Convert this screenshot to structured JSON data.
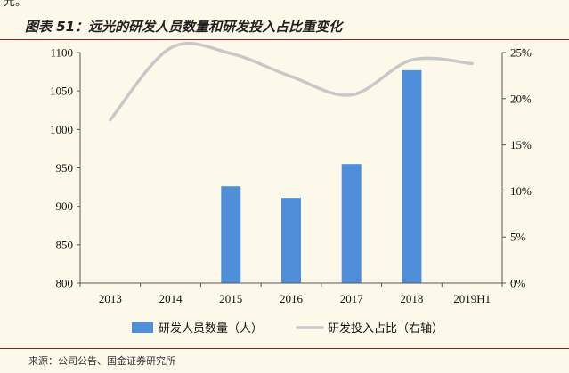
{
  "header": {
    "top_fragment": "元。",
    "title": "图表 51：远光的研发人员数量和研发投入占比重变化"
  },
  "footer": {
    "source": "来源：公司公告、国金证券研究所"
  },
  "colors": {
    "bar": "#4f8fd9",
    "line": "#c8c8c8",
    "rule": "#8a1f24",
    "background": "#fdf9ea"
  },
  "chart_data": {
    "type": "bar",
    "categories": [
      "2013",
      "2014",
      "2015",
      "2016",
      "2017",
      "2018",
      "2019H1"
    ],
    "series": [
      {
        "name": "研发人员数量（人）",
        "type": "bar",
        "axis": "left",
        "values": [
          null,
          null,
          926,
          911,
          955,
          1077,
          null
        ]
      },
      {
        "name": "研发投入占比（右轴）",
        "type": "line",
        "axis": "right",
        "values": [
          17.7,
          25.5,
          24.9,
          22.4,
          20.4,
          24.2,
          23.8
        ]
      }
    ],
    "y_left": {
      "lim": [
        800,
        1100
      ],
      "ticks": [
        "800",
        "850",
        "900",
        "950",
        "1000",
        "1050",
        "1100"
      ]
    },
    "y_right": {
      "lim": [
        0,
        25
      ],
      "ticks": [
        "0%",
        "5%",
        "10%",
        "15%",
        "20%",
        "25%"
      ]
    },
    "legend_position": "bottom",
    "grid": false
  }
}
